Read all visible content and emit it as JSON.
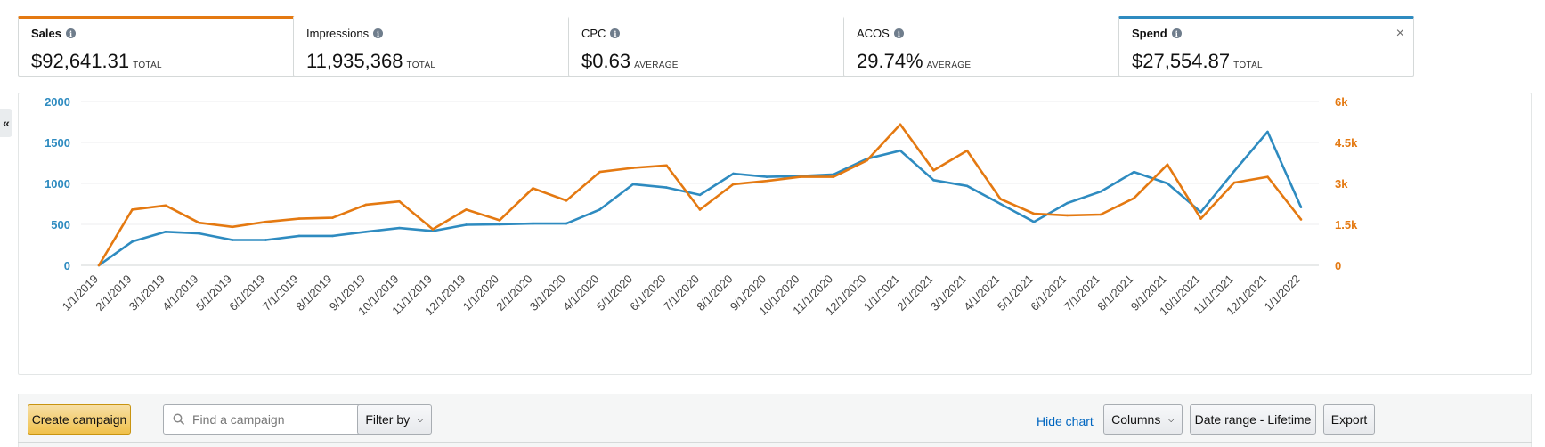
{
  "metrics": [
    {
      "label": "Sales",
      "value": "$92,641.31",
      "unit": "TOTAL",
      "active": true,
      "accent": "#e47911"
    },
    {
      "label": "Impressions",
      "value": "11,935,368",
      "unit": "TOTAL",
      "active": false,
      "accent": ""
    },
    {
      "label": "CPC",
      "value": "$0.63",
      "unit": "AVERAGE",
      "active": false,
      "accent": ""
    },
    {
      "label": "ACOS",
      "value": "29.74%",
      "unit": "AVERAGE",
      "active": false,
      "accent": ""
    },
    {
      "label": "Spend",
      "value": "$27,554.87",
      "unit": "TOTAL",
      "active": true,
      "accent": "#2e8bc0"
    }
  ],
  "info_glyph": "i",
  "close_glyph": "×",
  "collapse_glyph": "«",
  "toolbar": {
    "create_label": "Create campaign",
    "search_placeholder": "Find a campaign",
    "filter_label": "Filter by",
    "hide_chart_label": "Hide chart",
    "columns_label": "Columns",
    "date_range_label": "Date range - Lifetime",
    "export_label": "Export"
  },
  "chart_data": {
    "type": "line",
    "x": [
      "1/1/2019",
      "2/1/2019",
      "3/1/2019",
      "4/1/2019",
      "5/1/2019",
      "6/1/2019",
      "7/1/2019",
      "8/1/2019",
      "9/1/2019",
      "10/1/2019",
      "11/1/2019",
      "12/1/2019",
      "1/1/2020",
      "2/1/2020",
      "3/1/2020",
      "4/1/2020",
      "5/1/2020",
      "6/1/2020",
      "7/1/2020",
      "8/1/2020",
      "9/1/2020",
      "10/1/2020",
      "11/1/2020",
      "12/1/2020",
      "1/1/2021",
      "2/1/2021",
      "3/1/2021",
      "4/1/2021",
      "5/1/2021",
      "6/1/2021",
      "7/1/2021",
      "8/1/2021",
      "9/1/2021",
      "10/1/2021",
      "11/1/2021",
      "12/1/2021",
      "1/1/2022"
    ],
    "series": [
      {
        "name": "Spend",
        "axis": "left",
        "color": "#2e8bc0",
        "values": [
          0,
          290,
          410,
          390,
          310,
          310,
          360,
          360,
          410,
          455,
          420,
          495,
          500,
          510,
          510,
          680,
          990,
          950,
          860,
          1120,
          1080,
          1090,
          1110,
          1300,
          1400,
          1040,
          970,
          750,
          530,
          760,
          900,
          1140,
          1000,
          650,
          1150,
          1630,
          710
        ]
      },
      {
        "name": "Sales",
        "axis": "right",
        "color": "#e47911",
        "values": [
          0,
          2040,
          2190,
          1560,
          1410,
          1590,
          1710,
          1740,
          2220,
          2340,
          1320,
          2040,
          1650,
          2820,
          2370,
          3420,
          3570,
          3660,
          2040,
          2970,
          3090,
          3240,
          3240,
          3840,
          5160,
          3480,
          4200,
          2430,
          1890,
          1830,
          1860,
          2460,
          3690,
          1710,
          3030,
          3240,
          1680
        ]
      }
    ],
    "left_axis": {
      "ticks": [
        0,
        500,
        1000,
        1500,
        2000
      ],
      "labels": [
        "0",
        "500",
        "1000",
        "1500",
        "2000"
      ],
      "ylim": [
        0,
        2000
      ],
      "color": "#2e8bc0"
    },
    "right_axis": {
      "ticks": [
        0,
        1500,
        3000,
        4500,
        6000
      ],
      "labels": [
        "0",
        "1.5k",
        "3k",
        "4.5k",
        "6k"
      ],
      "ylim": [
        0,
        6000
      ],
      "color": "#e47911"
    },
    "grid": true
  }
}
